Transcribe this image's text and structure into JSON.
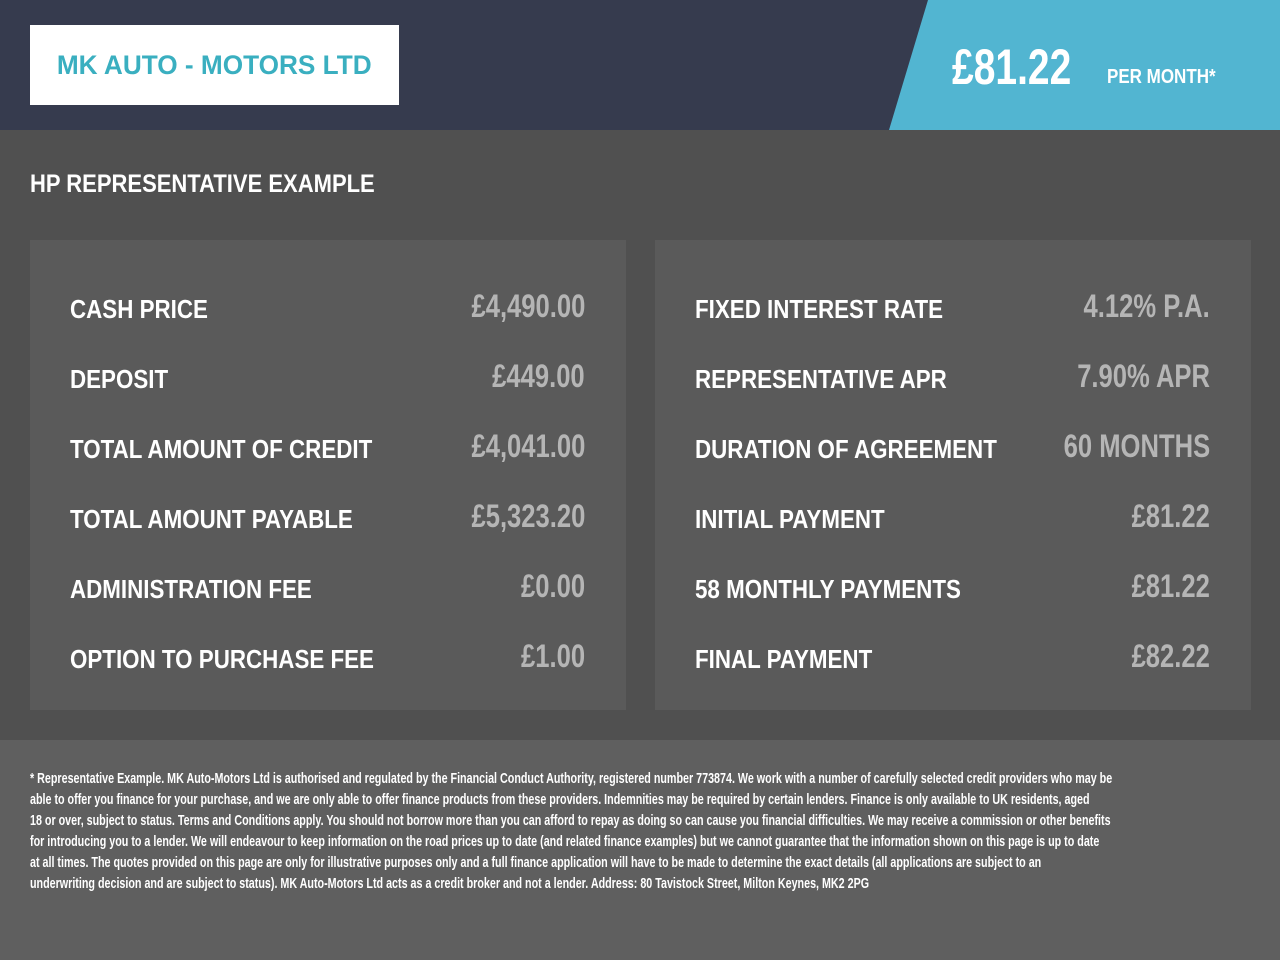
{
  "header": {
    "logo_text": "MK AUTO - MOTORS LTD",
    "monthly_price": "£81.22",
    "per_month_label": "PER MONTH*",
    "colors": {
      "header_bg": "#363b4e",
      "accent": "#52b5d1",
      "logo_text": "#3aafc0"
    }
  },
  "section_title": "HP REPRESENTATIVE EXAMPLE",
  "left_panel": [
    {
      "label": "CASH PRICE",
      "value": "£4,490.00"
    },
    {
      "label": "DEPOSIT",
      "value": "£449.00"
    },
    {
      "label": "TOTAL AMOUNT OF CREDIT",
      "value": "£4,041.00"
    },
    {
      "label": "TOTAL AMOUNT PAYABLE",
      "value": "£5,323.20"
    },
    {
      "label": "ADMINISTRATION FEE",
      "value": "£0.00"
    },
    {
      "label": "OPTION TO PURCHASE FEE",
      "value": "£1.00"
    }
  ],
  "right_panel": [
    {
      "label": "FIXED INTEREST RATE",
      "value": "4.12% P.A."
    },
    {
      "label": "REPRESENTATIVE APR",
      "value": "7.90% APR"
    },
    {
      "label": "DURATION OF AGREEMENT",
      "value": "60 MONTHS"
    },
    {
      "label": "INITIAL PAYMENT",
      "value": "£81.22"
    },
    {
      "label": "58 MONTHLY PAYMENTS",
      "value": "£81.22"
    },
    {
      "label": "FINAL PAYMENT",
      "value": "£82.22"
    }
  ],
  "disclaimer_lines": [
    "* Representative Example. MK Auto-Motors Ltd is authorised and regulated by the Financial Conduct Authority, registered number 773874. We work with a number of carefully selected credit providers who may be",
    "able to offer you finance for your purchase, and we are only able to offer finance products from these providers. Indemnities may be required by certain lenders. Finance is only available to UK residents, aged",
    "18 or over, subject to status. Terms and Conditions apply. You should not borrow more than you can afford to repay as doing so can cause you financial difficulties. We may receive a commission or other benefits",
    "for introducing you to a lender. We will endeavour to keep information on the road prices up to date (and related finance examples) but we cannot guarantee that the information shown on this page is up to date",
    "at all times. The quotes provided on this page are only for illustrative purposes only and a full finance application will have to be made to determine the exact details (all applications are subject to an",
    "underwriting decision and are subject to status). MK Auto-Motors Ltd acts as a credit broker and not a lender. Address: 80 Tavistock Street, Milton Keynes, MK2 2PG"
  ]
}
